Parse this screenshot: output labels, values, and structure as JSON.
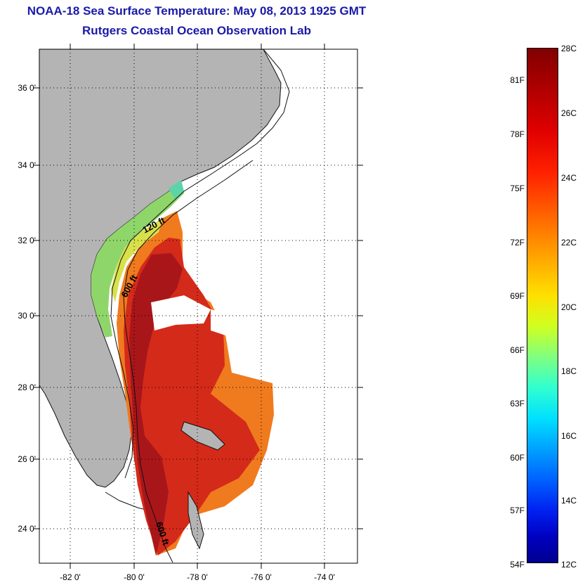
{
  "title": {
    "line1": "NOAA-18 Sea Surface Temperature:  May 08, 2013 1925 GMT",
    "line2": "Rutgers Coastal Ocean Observation Lab"
  },
  "map": {
    "lat_labels": [
      "36 0'",
      "34 0'",
      "32 0'",
      "30 0'",
      "28 0'",
      "26 0'",
      "24 0'"
    ],
    "lon_labels": [
      "-82 0'",
      "-80 0'",
      "-78 0'",
      "-76 0'",
      "-74 0'"
    ],
    "contour_labels": [
      "120 ft",
      "600 ft",
      "600 ft"
    ],
    "colors": {
      "land": "#b4b4b4",
      "water_bg": "#ffffff",
      "sst_green": "#8fd66a",
      "sst_yellow": "#d8e04a",
      "sst_orange": "#f07a1e",
      "sst_red": "#d42a1a",
      "sst_darkred": "#a8161a"
    }
  },
  "colorbar": {
    "fahrenheit_labels": [
      "81F",
      "78F",
      "75F",
      "72F",
      "69F",
      "66F",
      "63F",
      "60F",
      "57F",
      "54F"
    ],
    "celsius_labels": [
      "28C",
      "26C",
      "24C",
      "22C",
      "20C",
      "18C",
      "16C",
      "14C",
      "12C"
    ],
    "colormap": "jet"
  }
}
